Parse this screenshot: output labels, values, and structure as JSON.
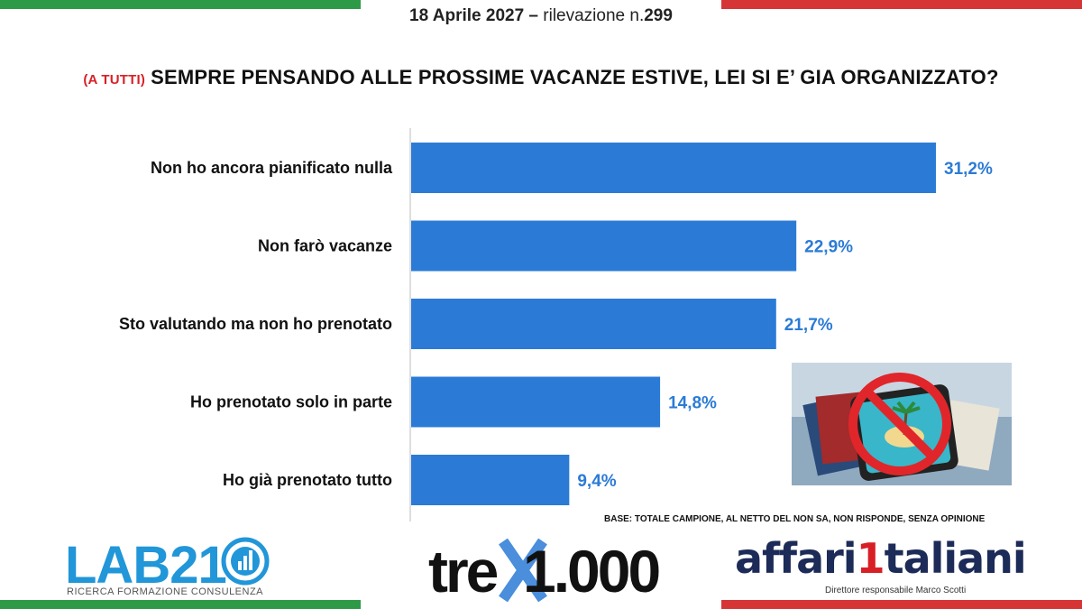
{
  "header": {
    "date": "18 Aprile 2027",
    "dash": " – ",
    "survey_label": "rilevazione n.",
    "survey_number": "299"
  },
  "question": {
    "tag": "(A TUTTI)",
    "text": "SEMPRE PENSANDO ALLE PROSSIME VACANZE ESTIVE, LEI SI E’ GIA ORGANIZZATO?"
  },
  "chart_data": {
    "type": "bar",
    "orientation": "horizontal",
    "categories": [
      "Non ho ancora pianificato nulla",
      "Non farò vacanze",
      "Sto valutando ma non ho prenotato",
      "Ho prenotato solo in parte",
      "Ho già prenotato tutto"
    ],
    "values": [
      31.2,
      22.9,
      21.7,
      14.8,
      9.4
    ],
    "value_labels": [
      "31,2%",
      "22,9%",
      "21,7%",
      "14,8%",
      "9,4%"
    ],
    "unit": "%",
    "bar_color": "#2b7bd6",
    "label_color": "#2b7bd6",
    "xlim": [
      0,
      32
    ]
  },
  "footnote": "BASE: TOTALE CAMPIONE, AL NETTO DEL NON SA, NON RISPONDE, SENZA OPINIONE",
  "logos": {
    "lab21": {
      "name": "LAB21",
      "tagline": "RICERCA FORMAZIONE CONSULENZA"
    },
    "trex": {
      "name_pre": "tre",
      "name_post": "1.000"
    },
    "affari": {
      "name_pre": "affari",
      "name_one": "1",
      "name_post": "taliani",
      "tagline": "Direttore responsabile Marco Scotti"
    }
  },
  "colors": {
    "flag_green": "#2e9a48",
    "flag_red": "#d63535",
    "accent_blue": "#2b7bd6",
    "tag_red": "#d91f26"
  }
}
